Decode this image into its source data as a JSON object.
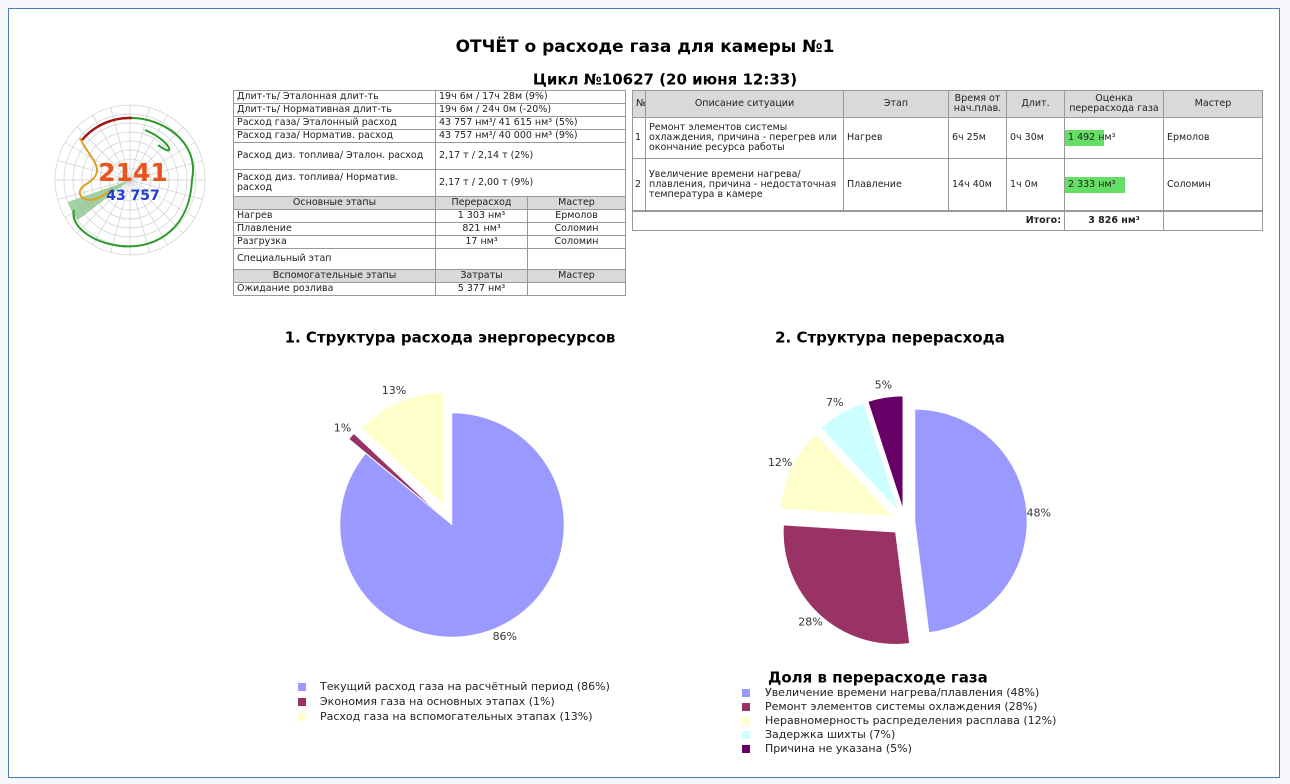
{
  "report": {
    "title": "ОТЧЁТ о расходе газа для камеры №1",
    "subtitle": "Цикл №10627 (20 июня 12:33)"
  },
  "gauge": {
    "value": "2141",
    "total": "43 757"
  },
  "summary": {
    "rows": [
      [
        "Длит-ть/ Эталонная длит-ть",
        "19ч 6м / 17ч 28м (9%)"
      ],
      [
        "Длит-ть/ Нормативная длит-ть",
        "19ч 6м / 24ч 0м (-20%)"
      ],
      [
        "Расход газа/ Эталонный расход",
        "43 757 нм³/ 41 615 нм³ (5%)"
      ],
      [
        "Расход газа/ Норматив. расход",
        "43 757 нм³/ 40 000 нм³ (9%)"
      ],
      [
        "Расход диз. топлива/ Эталон. расход",
        "2,17 т / 2,14 т (2%)"
      ],
      [
        "Расход диз. топлива/ Норматив. расход",
        "2,17 т / 2,00 т (9%)"
      ]
    ]
  },
  "main_stages": {
    "header": [
      "Основные этапы",
      "Перерасход",
      "Мастер"
    ],
    "rows": [
      [
        "Нагрев",
        "1 303 нм³",
        "Ермолов"
      ],
      [
        "Плавление",
        "821 нм³",
        "Соломин"
      ],
      [
        "Разгрузка",
        "17 нм³",
        "Соломин"
      ],
      [
        "Специальный этап"
      ]
    ]
  },
  "aux_stages": {
    "header": [
      "Вспомогательные этапы",
      "Затраты",
      "Мастер"
    ],
    "rows": [
      [
        "Ожидание розлива",
        "5 377 нм³"
      ]
    ]
  },
  "incidents": {
    "header": [
      "№",
      "Описание ситуации",
      "Этап",
      "Время от нач.плав.",
      "Длит.",
      "Оценка перерасхода газа",
      "Мастер"
    ],
    "rows": [
      [
        "1",
        "Ремонт элементов системы охлаждения, причина - перегрев или окончание ресурса работы",
        "Нагрев",
        "6ч 25м",
        "0ч 30м",
        "1 492 нм³",
        "Ермолов"
      ],
      [
        "2",
        "Увеличение времени нагрева/плавления, причина - недостаточная температура в камере",
        "Плавление",
        "14ч 40м",
        "1ч 0м",
        "2 333 нм³",
        "Соломин"
      ]
    ],
    "bar_values": [
      1492,
      2333
    ],
    "bar_color": "#66dd66",
    "total_label": "Итого:",
    "total": "3 826 нм³",
    "total_value": 3826
  },
  "chart_data": [
    {
      "type": "pie",
      "title": "1. Структура расхода энергоресурсов",
      "categories": [
        "Текущий расход газа на расчётный период (86%)",
        "Экономия газа на основных этапах (1%)",
        "Расход газа на вспомогательных этапах (13%)"
      ],
      "values": [
        86,
        1,
        13
      ],
      "value_labels": [
        "86%",
        "1%",
        "13%"
      ],
      "colors": [
        "#9999ff",
        "#993366",
        "#ffffcc"
      ]
    },
    {
      "type": "pie",
      "title": "2. Структура перерасхода",
      "legend_title": "Доля в перерасходе газа",
      "categories": [
        "Увеличение времени нагрева/плавления (48%)",
        "Ремонт элементов системы охлаждения (28%)",
        "Неравномерность распределения расплава (12%)",
        "Задержка шихты (7%)",
        "Причина не указана (5%)"
      ],
      "values": [
        48,
        28,
        12,
        7,
        5
      ],
      "value_labels": [
        "48%",
        "28%",
        "12%",
        "7%",
        "5%"
      ],
      "colors": [
        "#9999ff",
        "#993366",
        "#ffffcc",
        "#ccffff",
        "#660066"
      ]
    }
  ]
}
